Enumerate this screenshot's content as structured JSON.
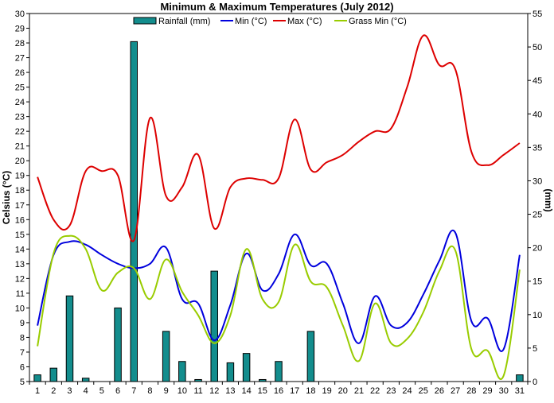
{
  "chart_data": {
    "type": "bar+line",
    "title": "Minimum & Maximum Temperatures (July 2012)",
    "ylabel_left": "Celsius (°C)",
    "ylabel_right": "(mm)",
    "xlabel": "",
    "categories": [
      "1",
      "2",
      "3",
      "4",
      "5",
      "6",
      "7",
      "8",
      "9",
      "10",
      "11",
      "12",
      "13",
      "14",
      "15",
      "16",
      "17",
      "18",
      "19",
      "20",
      "21",
      "22",
      "23",
      "24",
      "25",
      "26",
      "27",
      "28",
      "29",
      "30",
      "31"
    ],
    "ylim_left": [
      5,
      30
    ],
    "ylim_right": [
      0,
      55
    ],
    "yticks_left": [
      "5",
      "6",
      "7",
      "8",
      "9",
      "10",
      "11",
      "12",
      "13",
      "14",
      "15",
      "16",
      "17",
      "18",
      "19",
      "20",
      "21",
      "22",
      "23",
      "24",
      "25",
      "26",
      "27",
      "28",
      "29",
      "30"
    ],
    "yticks_right": [
      "0",
      "5",
      "10",
      "15",
      "20",
      "25",
      "30",
      "35",
      "40",
      "45",
      "50",
      "55"
    ],
    "legend_position": "top",
    "series": [
      {
        "name": "Rainfall (mm)",
        "type": "bar",
        "axis": "right",
        "color": "#138d8d",
        "values": [
          1.0,
          2.0,
          12.8,
          0.5,
          0,
          11.0,
          50.8,
          0,
          7.5,
          3.0,
          0.3,
          16.5,
          2.8,
          4.2,
          0.3,
          3.0,
          0,
          7.5,
          0,
          0,
          0,
          0,
          0,
          0,
          0,
          0,
          0,
          0,
          0,
          0,
          1.0
        ]
      },
      {
        "name": "Min (°C)",
        "type": "line",
        "axis": "left",
        "color": "#0000dd",
        "values": [
          8.8,
          13.6,
          14.5,
          14.3,
          13.6,
          13.0,
          12.7,
          13.0,
          14.1,
          10.6,
          10.3,
          7.8,
          10.2,
          13.7,
          11.2,
          12.3,
          15.0,
          12.9,
          13.0,
          10.3,
          7.6,
          10.8,
          8.8,
          9.0,
          10.9,
          13.2,
          15.1,
          9.1,
          9.3,
          7.2,
          13.6
        ]
      },
      {
        "name": "Max (°C)",
        "type": "line",
        "axis": "left",
        "color": "#dd0000",
        "values": [
          18.9,
          16.0,
          15.6,
          19.3,
          19.3,
          19.0,
          14.6,
          22.9,
          17.6,
          18.2,
          20.4,
          15.4,
          18.2,
          18.8,
          18.7,
          18.8,
          22.8,
          19.4,
          19.9,
          20.4,
          21.3,
          22.0,
          22.2,
          25.0,
          28.5,
          26.5,
          26.2,
          20.6,
          19.7,
          20.4,
          21.2
        ]
      },
      {
        "name": "Grass Min (°C)",
        "type": "line",
        "axis": "left",
        "color": "#99cc00",
        "values": [
          7.4,
          13.7,
          14.9,
          14.0,
          11.2,
          12.4,
          12.7,
          10.6,
          13.3,
          11.1,
          9.5,
          7.6,
          9.5,
          14.0,
          10.6,
          10.4,
          14.3,
          11.8,
          11.4,
          8.8,
          6.4,
          10.3,
          7.6,
          7.9,
          9.7,
          12.5,
          13.9,
          7.2,
          7.1,
          5.4,
          12.6
        ]
      }
    ]
  }
}
